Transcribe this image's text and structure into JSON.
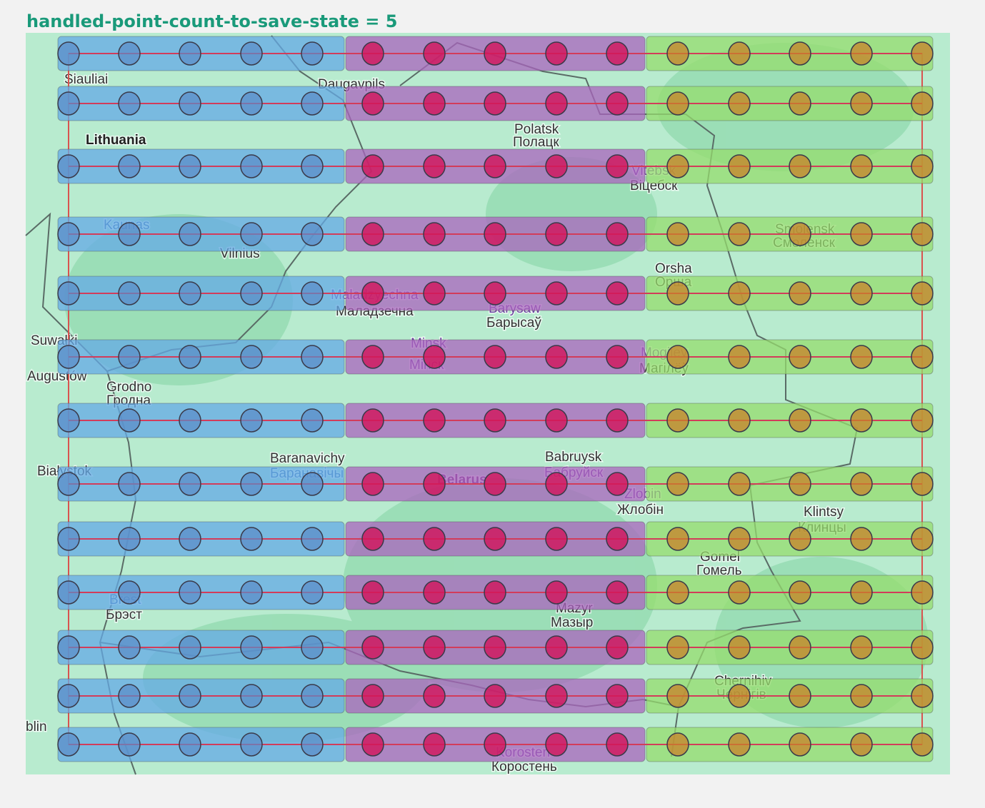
{
  "header": {
    "title": "handled-point-count-to-save-state = 5"
  },
  "map": {
    "labels": [
      "Siauliai",
      "Daugavpils",
      "Lithuania",
      "Polatsk",
      "Полацк",
      "Vitebsk",
      "Віцебск",
      "Kaunas",
      "Vilnius",
      "Smolensk",
      "Смоленск",
      "Orsha",
      "Орша",
      "Maladzyechna",
      "Маладзечна",
      "Barysaw",
      "Барысаў",
      "Suwałki",
      "Minsk",
      "Мінск",
      "Mogilev",
      "Магілёў",
      "Augustów",
      "Grodno",
      "Гродна",
      "Baranavichy",
      "Баранавічы",
      "Babruysk",
      "Бабруйск",
      "Białystok",
      "Belarus",
      "Zlobin",
      "Жлобін",
      "Klintsy",
      "Клинцы",
      "Gomel",
      "Гомель",
      "Brest",
      "Брэст",
      "Mazyr",
      "Мазыр",
      "Chernihiv",
      "Чернігів",
      "blin",
      "Korosten",
      "Коростень"
    ]
  }
}
